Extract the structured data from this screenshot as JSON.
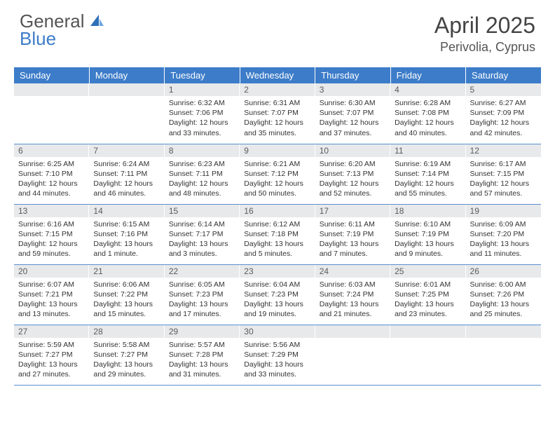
{
  "brand": {
    "general": "General",
    "blue": "Blue"
  },
  "title": "April 2025",
  "location": "Perivolia, Cyprus",
  "colors": {
    "header_bg": "#3d7cc9",
    "header_text": "#ffffff",
    "daynum_bg": "#e7e9eb",
    "row_divider": "#5a8fd0",
    "body_text": "#333333",
    "page_bg": "#ffffff"
  },
  "typography": {
    "title_fontsize": 32,
    "location_fontsize": 18,
    "header_fontsize": 13,
    "cell_fontsize": 10.5
  },
  "day_headers": [
    "Sunday",
    "Monday",
    "Tuesday",
    "Wednesday",
    "Thursday",
    "Friday",
    "Saturday"
  ],
  "weeks": [
    [
      {
        "n": "",
        "sr": "",
        "ss": "",
        "dl": ""
      },
      {
        "n": "",
        "sr": "",
        "ss": "",
        "dl": ""
      },
      {
        "n": "1",
        "sr": "Sunrise: 6:32 AM",
        "ss": "Sunset: 7:06 PM",
        "dl": "Daylight: 12 hours and 33 minutes."
      },
      {
        "n": "2",
        "sr": "Sunrise: 6:31 AM",
        "ss": "Sunset: 7:07 PM",
        "dl": "Daylight: 12 hours and 35 minutes."
      },
      {
        "n": "3",
        "sr": "Sunrise: 6:30 AM",
        "ss": "Sunset: 7:07 PM",
        "dl": "Daylight: 12 hours and 37 minutes."
      },
      {
        "n": "4",
        "sr": "Sunrise: 6:28 AM",
        "ss": "Sunset: 7:08 PM",
        "dl": "Daylight: 12 hours and 40 minutes."
      },
      {
        "n": "5",
        "sr": "Sunrise: 6:27 AM",
        "ss": "Sunset: 7:09 PM",
        "dl": "Daylight: 12 hours and 42 minutes."
      }
    ],
    [
      {
        "n": "6",
        "sr": "Sunrise: 6:25 AM",
        "ss": "Sunset: 7:10 PM",
        "dl": "Daylight: 12 hours and 44 minutes."
      },
      {
        "n": "7",
        "sr": "Sunrise: 6:24 AM",
        "ss": "Sunset: 7:11 PM",
        "dl": "Daylight: 12 hours and 46 minutes."
      },
      {
        "n": "8",
        "sr": "Sunrise: 6:23 AM",
        "ss": "Sunset: 7:11 PM",
        "dl": "Daylight: 12 hours and 48 minutes."
      },
      {
        "n": "9",
        "sr": "Sunrise: 6:21 AM",
        "ss": "Sunset: 7:12 PM",
        "dl": "Daylight: 12 hours and 50 minutes."
      },
      {
        "n": "10",
        "sr": "Sunrise: 6:20 AM",
        "ss": "Sunset: 7:13 PM",
        "dl": "Daylight: 12 hours and 52 minutes."
      },
      {
        "n": "11",
        "sr": "Sunrise: 6:19 AM",
        "ss": "Sunset: 7:14 PM",
        "dl": "Daylight: 12 hours and 55 minutes."
      },
      {
        "n": "12",
        "sr": "Sunrise: 6:17 AM",
        "ss": "Sunset: 7:15 PM",
        "dl": "Daylight: 12 hours and 57 minutes."
      }
    ],
    [
      {
        "n": "13",
        "sr": "Sunrise: 6:16 AM",
        "ss": "Sunset: 7:15 PM",
        "dl": "Daylight: 12 hours and 59 minutes."
      },
      {
        "n": "14",
        "sr": "Sunrise: 6:15 AM",
        "ss": "Sunset: 7:16 PM",
        "dl": "Daylight: 13 hours and 1 minute."
      },
      {
        "n": "15",
        "sr": "Sunrise: 6:14 AM",
        "ss": "Sunset: 7:17 PM",
        "dl": "Daylight: 13 hours and 3 minutes."
      },
      {
        "n": "16",
        "sr": "Sunrise: 6:12 AM",
        "ss": "Sunset: 7:18 PM",
        "dl": "Daylight: 13 hours and 5 minutes."
      },
      {
        "n": "17",
        "sr": "Sunrise: 6:11 AM",
        "ss": "Sunset: 7:19 PM",
        "dl": "Daylight: 13 hours and 7 minutes."
      },
      {
        "n": "18",
        "sr": "Sunrise: 6:10 AM",
        "ss": "Sunset: 7:19 PM",
        "dl": "Daylight: 13 hours and 9 minutes."
      },
      {
        "n": "19",
        "sr": "Sunrise: 6:09 AM",
        "ss": "Sunset: 7:20 PM",
        "dl": "Daylight: 13 hours and 11 minutes."
      }
    ],
    [
      {
        "n": "20",
        "sr": "Sunrise: 6:07 AM",
        "ss": "Sunset: 7:21 PM",
        "dl": "Daylight: 13 hours and 13 minutes."
      },
      {
        "n": "21",
        "sr": "Sunrise: 6:06 AM",
        "ss": "Sunset: 7:22 PM",
        "dl": "Daylight: 13 hours and 15 minutes."
      },
      {
        "n": "22",
        "sr": "Sunrise: 6:05 AM",
        "ss": "Sunset: 7:23 PM",
        "dl": "Daylight: 13 hours and 17 minutes."
      },
      {
        "n": "23",
        "sr": "Sunrise: 6:04 AM",
        "ss": "Sunset: 7:23 PM",
        "dl": "Daylight: 13 hours and 19 minutes."
      },
      {
        "n": "24",
        "sr": "Sunrise: 6:03 AM",
        "ss": "Sunset: 7:24 PM",
        "dl": "Daylight: 13 hours and 21 minutes."
      },
      {
        "n": "25",
        "sr": "Sunrise: 6:01 AM",
        "ss": "Sunset: 7:25 PM",
        "dl": "Daylight: 13 hours and 23 minutes."
      },
      {
        "n": "26",
        "sr": "Sunrise: 6:00 AM",
        "ss": "Sunset: 7:26 PM",
        "dl": "Daylight: 13 hours and 25 minutes."
      }
    ],
    [
      {
        "n": "27",
        "sr": "Sunrise: 5:59 AM",
        "ss": "Sunset: 7:27 PM",
        "dl": "Daylight: 13 hours and 27 minutes."
      },
      {
        "n": "28",
        "sr": "Sunrise: 5:58 AM",
        "ss": "Sunset: 7:27 PM",
        "dl": "Daylight: 13 hours and 29 minutes."
      },
      {
        "n": "29",
        "sr": "Sunrise: 5:57 AM",
        "ss": "Sunset: 7:28 PM",
        "dl": "Daylight: 13 hours and 31 minutes."
      },
      {
        "n": "30",
        "sr": "Sunrise: 5:56 AM",
        "ss": "Sunset: 7:29 PM",
        "dl": "Daylight: 13 hours and 33 minutes."
      },
      {
        "n": "",
        "sr": "",
        "ss": "",
        "dl": ""
      },
      {
        "n": "",
        "sr": "",
        "ss": "",
        "dl": ""
      },
      {
        "n": "",
        "sr": "",
        "ss": "",
        "dl": ""
      }
    ]
  ]
}
